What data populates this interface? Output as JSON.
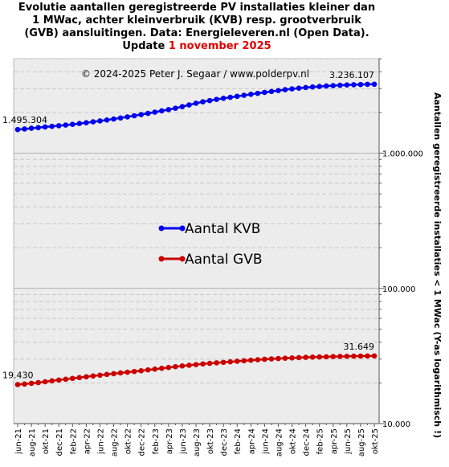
{
  "title": {
    "line1": "Evolutie aantallen geregistreerde  PV installaties kleiner dan",
    "line2": "1 MWac, achter kleinverbruik  (KVB) resp. grootverbruik",
    "line3": "(GVB) aansluitingen.  Data: Energieleveren.nl  (Open Data).",
    "update_prefix": "Update ",
    "update_date": "1 november 2025"
  },
  "copyright": "© 2024-2025  Peter J. Segaar / www.polderpv.nl",
  "chart_data": {
    "type": "line",
    "x": [
      "jun-21",
      "jul-21",
      "aug-21",
      "sep-21",
      "okt-21",
      "nov-21",
      "dec-21",
      "jan-22",
      "feb-22",
      "mrt-22",
      "apr-22",
      "mei-22",
      "jun-22",
      "jul-22",
      "aug-22",
      "sep-22",
      "okt-22",
      "nov-22",
      "dec-22",
      "jan-23",
      "feb-23",
      "mrt-23",
      "apr-23",
      "mei-23",
      "jun-23",
      "jul-23",
      "aug-23",
      "sep-23",
      "okt-23",
      "nov-23",
      "dec-23",
      "jan-24",
      "feb-24",
      "mrt-24",
      "apr-24",
      "mei-24",
      "jun-24",
      "jul-24",
      "aug-24",
      "sep-24",
      "okt-24",
      "nov-24",
      "dec-24",
      "jan-25",
      "feb-25",
      "mrt-25",
      "apr-25",
      "mei-25",
      "jun-25",
      "jul-25",
      "aug-25",
      "sep-25",
      "okt-25"
    ],
    "x_tick_labels": [
      "jun-21",
      "aug-21",
      "okt-21",
      "dec-21",
      "feb-22",
      "apr-22",
      "jun-22",
      "aug-22",
      "okt-22",
      "dec-22",
      "feb-23",
      "apr-23",
      "jun-23",
      "aug-23",
      "okt-23",
      "dec-23",
      "feb-24",
      "apr-24",
      "jun-24",
      "aug-24",
      "okt-24",
      "dec-24",
      "feb-25",
      "apr-25",
      "jun-25",
      "aug-25",
      "okt-25"
    ],
    "series": [
      {
        "name": "Aantal KVB",
        "color": "#0000ee",
        "values": [
          1495304,
          1510000,
          1528000,
          1545000,
          1563000,
          1580000,
          1597000,
          1615000,
          1635000,
          1657000,
          1680000,
          1705000,
          1732000,
          1760000,
          1790000,
          1822000,
          1856000,
          1892000,
          1930000,
          1970000,
          2012000,
          2056000,
          2100000,
          2150000,
          2210000,
          2275000,
          2340000,
          2400000,
          2450000,
          2500000,
          2545000,
          2590000,
          2635000,
          2680000,
          2725000,
          2770000,
          2815000,
          2860000,
          2905000,
          2950000,
          2990000,
          3025000,
          3060000,
          3090000,
          3115000,
          3140000,
          3160000,
          3178000,
          3195000,
          3208000,
          3220000,
          3230000,
          3236107
        ],
        "start_label": "1.495.304",
        "end_label": "3.236.107"
      },
      {
        "name": "Aantal GVB",
        "color": "#cc0000",
        "values": [
          19430,
          19600,
          19850,
          20100,
          20400,
          20700,
          21000,
          21300,
          21600,
          21900,
          22200,
          22500,
          22800,
          23100,
          23400,
          23700,
          24000,
          24300,
          24600,
          24950,
          25300,
          25650,
          26000,
          26350,
          26700,
          27000,
          27300,
          27600,
          27900,
          28150,
          28400,
          28650,
          28900,
          29150,
          29400,
          29650,
          29900,
          30100,
          30300,
          30450,
          30600,
          30750,
          30900,
          31000,
          31100,
          31200,
          31300,
          31380,
          31450,
          31520,
          31580,
          31620,
          31649
        ],
        "start_label": "19.430",
        "end_label": "31.649"
      }
    ],
    "y_scale": "log",
    "ylim": [
      10000,
      5000000
    ],
    "y_tick_labels": [
      "10.000",
      "100.000",
      "1.000.000"
    ],
    "ylabel": "Aantallen geregistreerde installaties < 1 MWac (Y-as logarithmisch !)",
    "legend": "center-left",
    "grid": true
  }
}
